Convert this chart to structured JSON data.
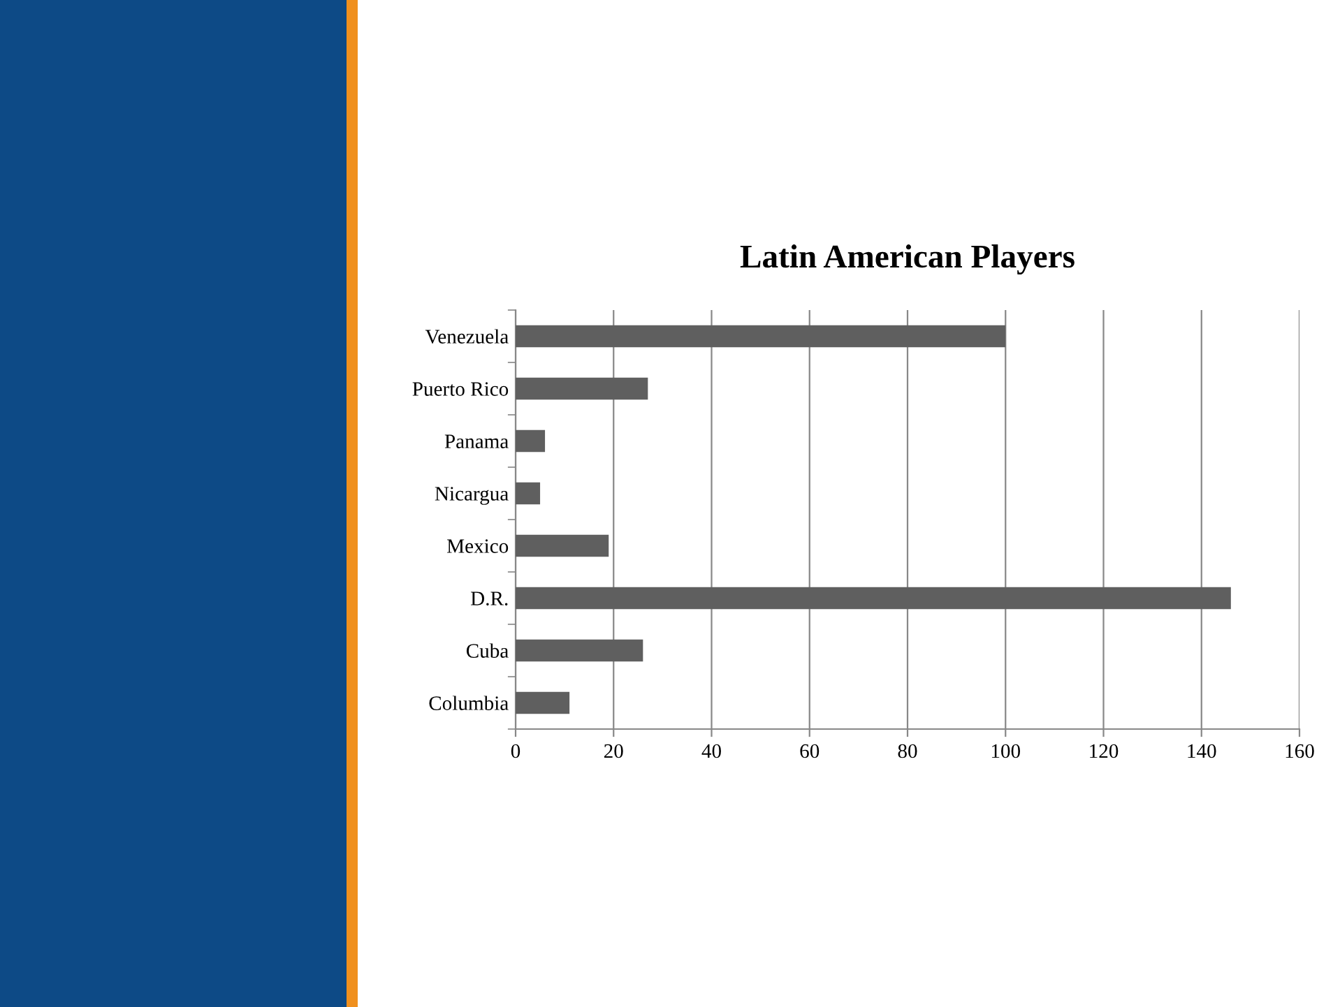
{
  "chart_data": {
    "type": "bar",
    "orientation": "horizontal",
    "title": "Latin American Players",
    "categories": [
      "Venezuela",
      "Puerto Rico",
      "Panama",
      "Nicargua",
      "Mexico",
      "D.R.",
      "Cuba",
      "Columbia"
    ],
    "values": [
      100,
      27,
      6,
      5,
      19,
      146,
      26,
      11
    ],
    "color": "#5f5f5f",
    "xlim": [
      0,
      160
    ],
    "xticks": [
      0,
      20,
      40,
      60,
      80,
      100,
      120,
      140,
      160
    ],
    "grid": "x"
  }
}
